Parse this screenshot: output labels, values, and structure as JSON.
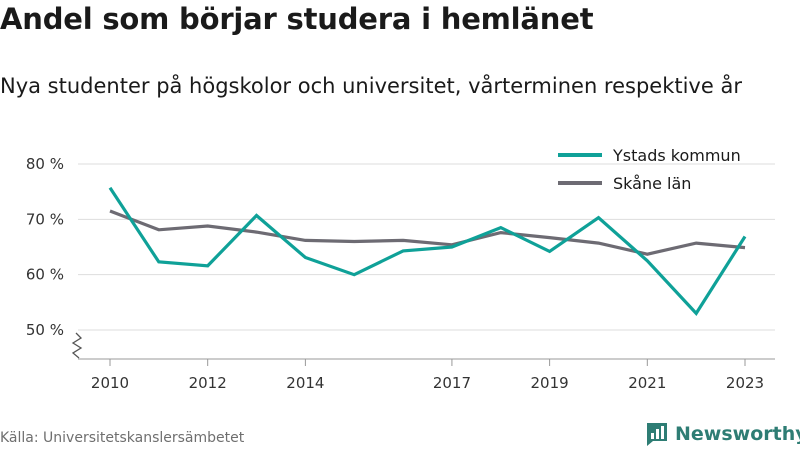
{
  "title": "Andel som börjar studera i hemlänet",
  "subtitle": "Nya studenter på högskolor och universitet, vårterminen respektive år",
  "source": "Källa: Universitetskanslersämbetet",
  "brand": {
    "name": "Newsworthy",
    "icon": "bar-chart-logo-icon",
    "color": "#2e7d74"
  },
  "colors": {
    "series_1": "#0fa198",
    "series_2": "#6d6b73",
    "grid": "#dddddd",
    "axis": "#999999"
  },
  "chart_data": {
    "type": "line",
    "title": "Andel som börjar studera i hemlänet",
    "xlabel": "",
    "ylabel": "",
    "x": [
      2010,
      2011,
      2012,
      2013,
      2014,
      2015,
      2016,
      2017,
      2018,
      2019,
      2020,
      2021,
      2022,
      2023
    ],
    "x_tick_labels": [
      "2010",
      "2012",
      "2014",
      "2017",
      "2019",
      "2021",
      "2023"
    ],
    "y_ticks": [
      50,
      60,
      70,
      80
    ],
    "y_tick_labels": [
      "50 %",
      "60 %",
      "70 %",
      "80 %"
    ],
    "ylim": [
      50,
      80
    ],
    "y_axis_break": true,
    "grid": true,
    "legend_position": "top-right",
    "series": [
      {
        "name": "Ystads kommun",
        "values": [
          75.7,
          62.3,
          61.6,
          70.7,
          63.1,
          60.0,
          64.3,
          65.0,
          68.5,
          64.2,
          70.3,
          62.5,
          53.0,
          66.9
        ]
      },
      {
        "name": "Skåne län",
        "values": [
          71.5,
          68.1,
          68.8,
          67.7,
          66.2,
          66.0,
          66.2,
          65.4,
          67.6,
          66.7,
          65.7,
          63.7,
          65.7,
          64.9
        ]
      }
    ]
  }
}
